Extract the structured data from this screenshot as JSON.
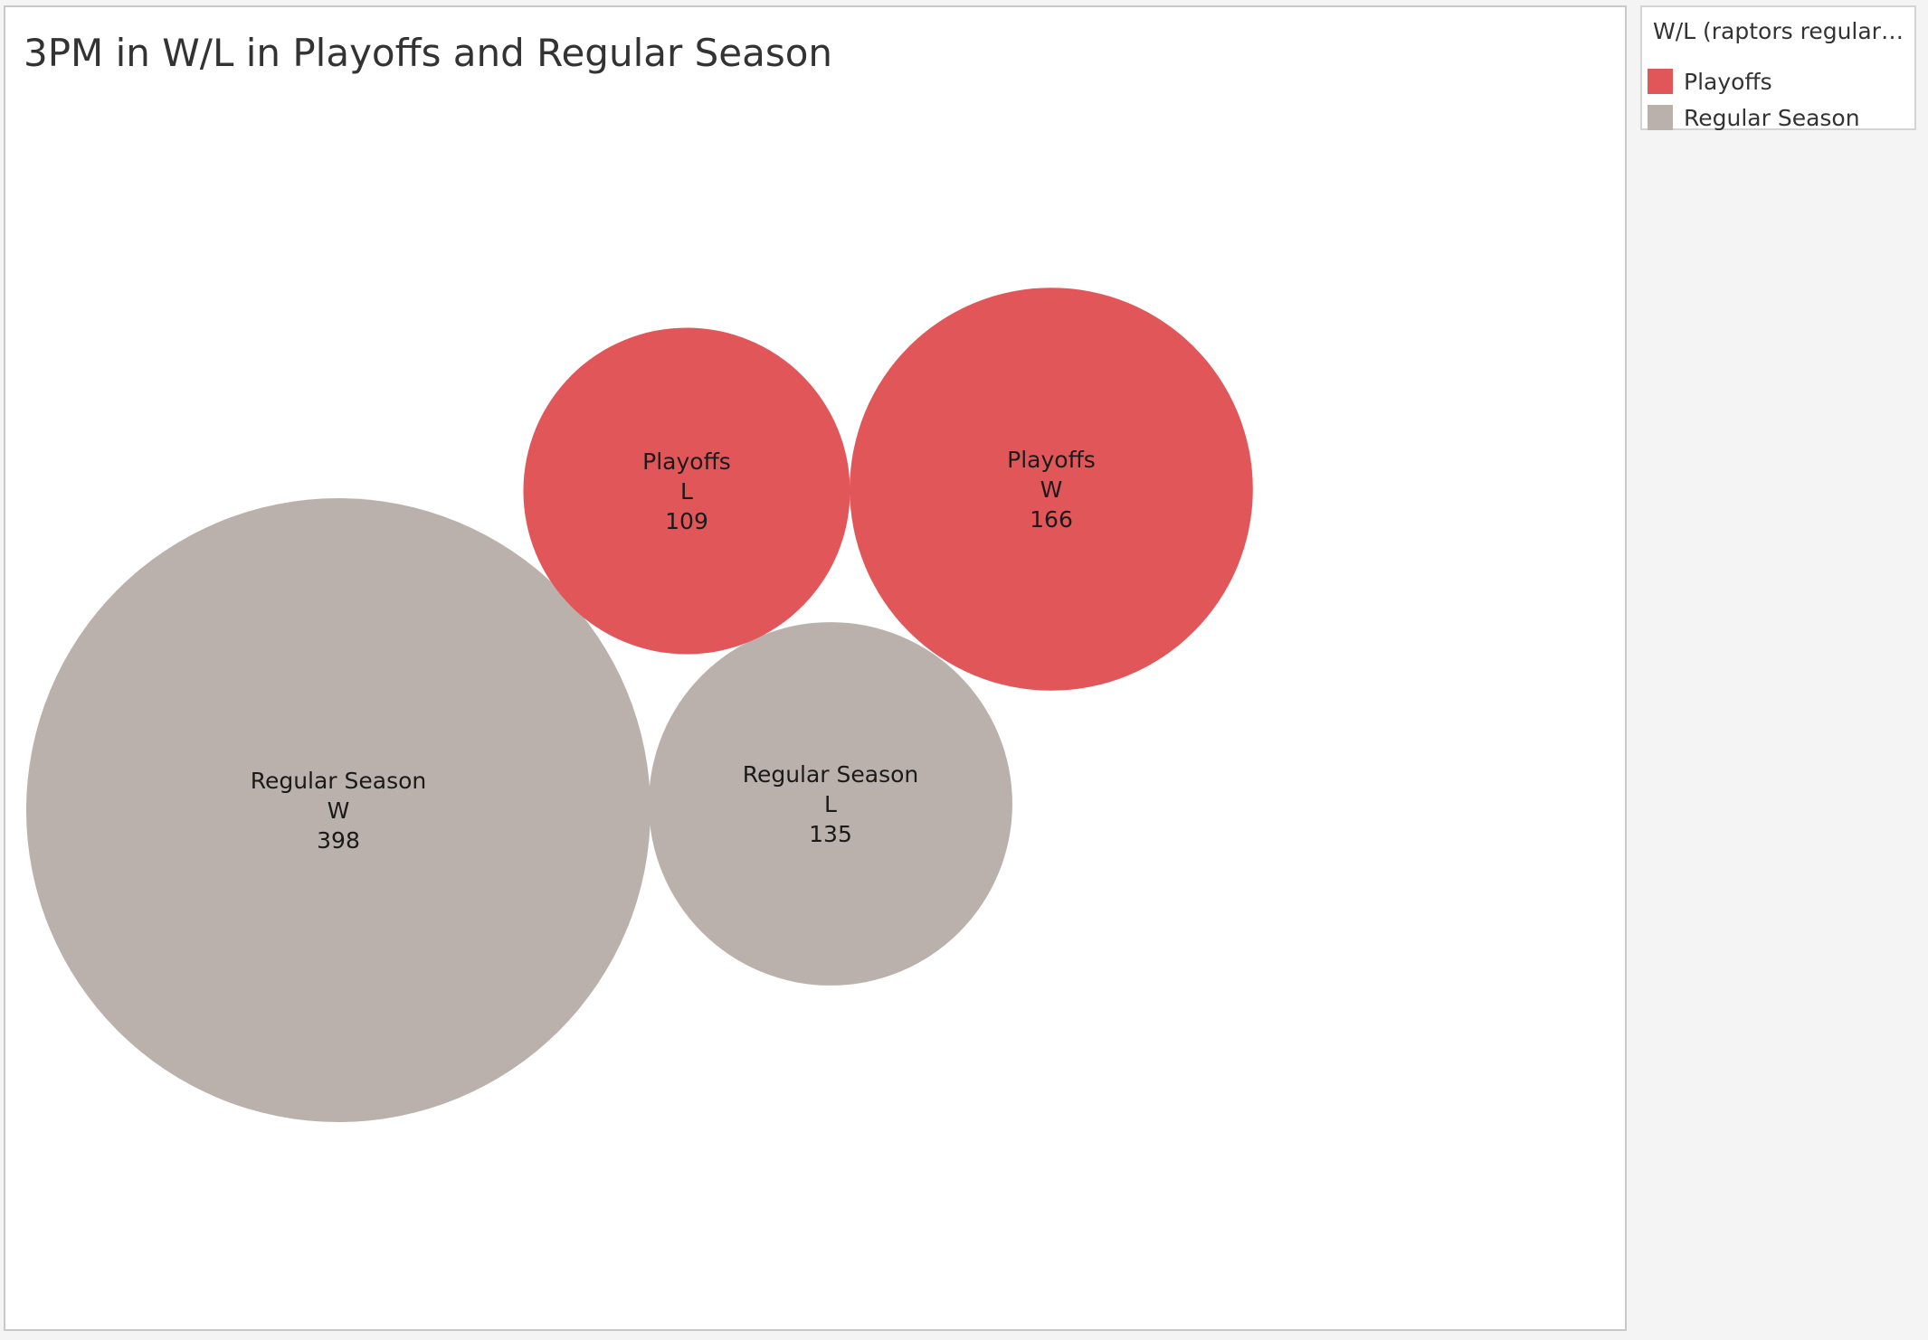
{
  "chart_data": {
    "type": "bubble",
    "title": "3PM in W/L in Playoffs and Regular Season",
    "measure": "3PM",
    "legend_title": "W/L (raptors regulars.c...",
    "legend_placement": "right",
    "colors": {
      "Playoffs": "#e15759",
      "Regular Season": "#bab0ac"
    },
    "legend": [
      {
        "name": "Playoffs",
        "color": "#e15759"
      },
      {
        "name": "Regular Season",
        "color": "#bab0ac"
      }
    ],
    "points": [
      {
        "season": "Regular Season",
        "result": "W",
        "value": 398
      },
      {
        "season": "Regular Season",
        "result": "L",
        "value": 135
      },
      {
        "season": "Playoffs",
        "result": "L",
        "value": 109
      },
      {
        "season": "Playoffs",
        "result": "W",
        "value": 166
      }
    ]
  }
}
